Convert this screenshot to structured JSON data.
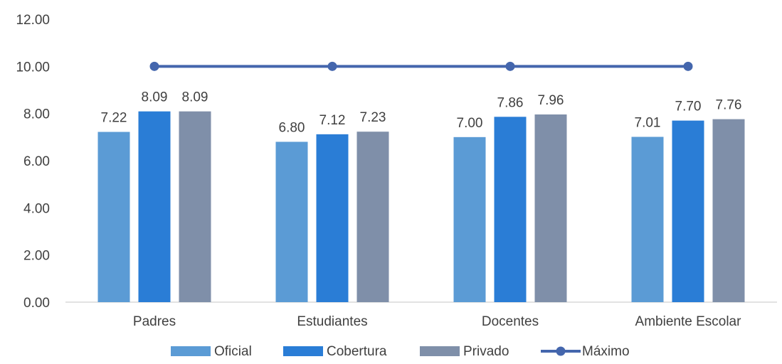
{
  "chart_data": {
    "type": "bar",
    "categories": [
      "Padres",
      "Estudiantes",
      "Docentes",
      "Ambiente Escolar"
    ],
    "series": [
      {
        "name": "Oficial",
        "type": "bar",
        "color": "#5B9BD5",
        "values": [
          7.22,
          6.8,
          7.0,
          7.01
        ],
        "labels": [
          "7.22",
          "6.80",
          "7.00",
          "7.01"
        ]
      },
      {
        "name": "Cobertura",
        "type": "bar",
        "color": "#2A7DD6",
        "values": [
          8.09,
          7.12,
          7.86,
          7.7
        ],
        "labels": [
          "8.09",
          "7.12",
          "7.86",
          "7.70"
        ]
      },
      {
        "name": "Privado",
        "type": "bar",
        "color": "#7F8FA9",
        "values": [
          8.09,
          7.23,
          7.96,
          7.76
        ],
        "labels": [
          "8.09",
          "7.23",
          "7.96",
          "7.76"
        ]
      },
      {
        "name": "Máximo",
        "type": "line",
        "color": "#4466AD",
        "values": [
          10,
          10,
          10,
          10
        ]
      }
    ],
    "yticks": [
      "0.00",
      "2.00",
      "4.00",
      "6.00",
      "8.00",
      "10.00",
      "12.00"
    ],
    "ylim": [
      0,
      12
    ],
    "grid": false,
    "legend": "bottom",
    "title": "",
    "xlabel": "",
    "ylabel": ""
  }
}
